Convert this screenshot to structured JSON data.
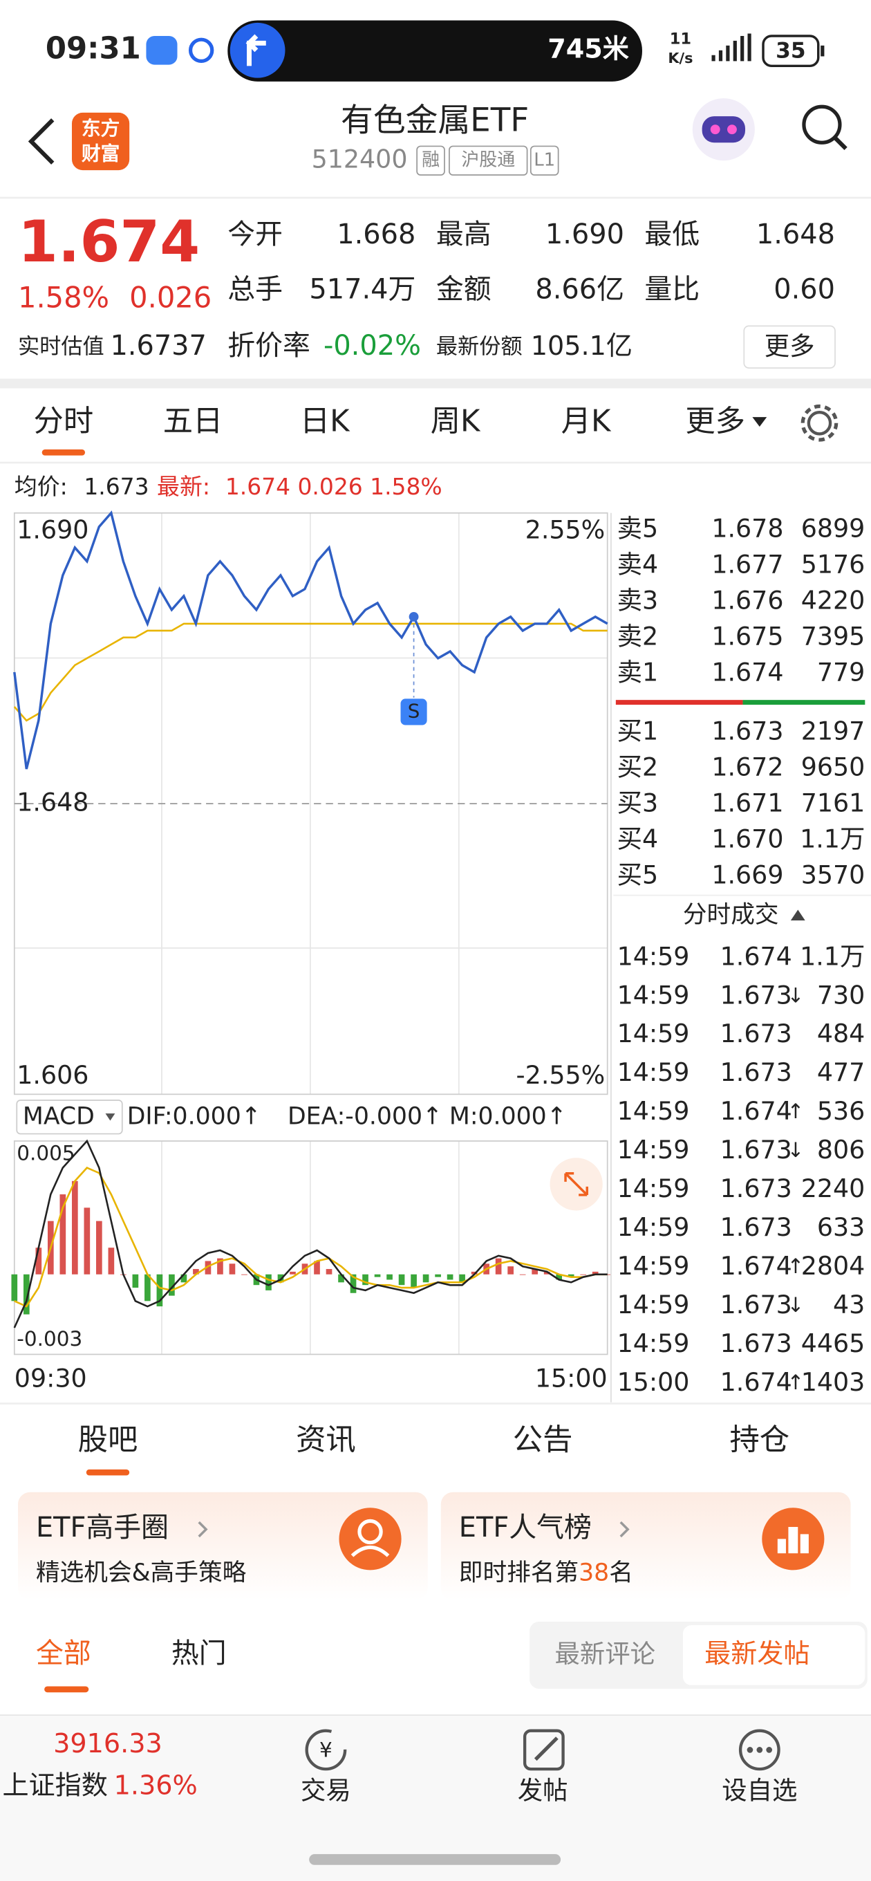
{
  "status_bar": {
    "time": "09:31",
    "navigation_distance": "745米",
    "network_speed": "11",
    "network_unit": "K/s",
    "battery": "35"
  },
  "header": {
    "logo": [
      "东方",
      "财富"
    ],
    "title": "有色金属ETF",
    "code": "512400",
    "tags": [
      "融",
      "沪股通",
      "L1"
    ]
  },
  "quote": {
    "price": "1.674",
    "change_pct": "1.58%",
    "change": "0.026",
    "stats": [
      {
        "label": "今开",
        "value": "1.668",
        "color": "#e0312b"
      },
      {
        "label": "最高",
        "value": "1.690",
        "color": "#e0312b"
      },
      {
        "label": "最低",
        "value": "1.648",
        "color": "#222"
      },
      {
        "label": "总手",
        "value": "517.4万",
        "color": "#222"
      },
      {
        "label": "金额",
        "value": "8.66亿",
        "color": "#222"
      },
      {
        "label": "量比",
        "value": "0.60",
        "color": "#222"
      }
    ],
    "estimate_label": "实时估值",
    "estimate": "1.6737",
    "discount_label": "折价率",
    "discount": "-0.02%",
    "shares_label": "最新份额",
    "shares": "105.1亿",
    "more": "更多"
  },
  "chart_tabs": {
    "items": [
      "分时",
      "五日",
      "日K",
      "周K",
      "月K",
      "更多"
    ],
    "active": 0
  },
  "intraday_chart": {
    "type": "line",
    "avg_label": "均价:",
    "avg": "1.673",
    "latest_label": "最新:",
    "latest": "1.674 0.026 1.58%",
    "ylim": [
      1.606,
      1.69
    ],
    "yticks": [
      {
        "value": 1.69,
        "label": "1.690"
      },
      1.648,
      1.606
    ],
    "y2lim": [
      -2.55,
      2.55
    ],
    "y2ticks": [
      {
        "value": 2.55,
        "label": "2.55%"
      },
      {
        "value": -2.55,
        "label": "-2.55%"
      }
    ],
    "price": [
      1.667,
      1.653,
      1.66,
      1.674,
      1.681,
      1.685,
      1.683,
      1.688,
      1.69,
      1.683,
      1.678,
      1.674,
      1.679,
      1.676,
      1.678,
      1.674,
      1.681,
      1.683,
      1.681,
      1.678,
      1.676,
      1.679,
      1.681,
      1.678,
      1.679,
      1.683,
      1.685,
      1.678,
      1.674,
      1.676,
      1.677,
      1.674,
      1.672,
      1.675,
      1.671,
      1.669,
      1.67,
      1.668,
      1.667,
      1.672,
      1.674,
      1.675,
      1.673,
      1.674,
      1.674,
      1.676,
      1.673,
      1.674,
      1.675,
      1.674
    ],
    "avg_price": [
      1.662,
      1.66,
      1.661,
      1.664,
      1.666,
      1.668,
      1.669,
      1.67,
      1.671,
      1.672,
      1.672,
      1.673,
      1.673,
      1.673,
      1.674,
      1.674,
      1.674,
      1.674,
      1.674,
      1.674,
      1.674,
      1.674,
      1.674,
      1.674,
      1.674,
      1.674,
      1.674,
      1.674,
      1.674,
      1.674,
      1.674,
      1.674,
      1.674,
      1.674,
      1.674,
      1.674,
      1.674,
      1.674,
      1.674,
      1.674,
      1.674,
      1.674,
      1.674,
      1.674,
      1.674,
      1.674,
      1.674,
      1.673,
      1.673,
      1.673
    ],
    "price_color": "#2f5fc4",
    "avg_color": "#e8b400",
    "signal": "S",
    "xticks": [
      "09:30",
      "15:00"
    ]
  },
  "macd_chart": {
    "type": "bar",
    "selector": "MACD",
    "dif": "DIF:0.000↑",
    "dea": "DEA:-0.000↑",
    "m": "M:0.000↑",
    "ylim": [
      -0.003,
      0.005
    ],
    "yticks": [
      0.005,
      -0.003
    ],
    "histogram": [
      -0.001,
      -0.0015,
      0.001,
      0.002,
      0.003,
      0.0035,
      0.0025,
      0.002,
      0.001,
      0,
      -0.0005,
      -0.001,
      -0.0012,
      -0.0008,
      -0.0003,
      0.0002,
      0.0005,
      0.0006,
      0.0004,
      0,
      -0.0004,
      -0.0006,
      -0.0003,
      0.0001,
      0.0004,
      0.0005,
      0.0002,
      -0.0003,
      -0.0007,
      -0.0004,
      -0.0001,
      -0.0002,
      -0.0004,
      -0.0005,
      -0.0003,
      -0.0001,
      -0.0002,
      -0.0003,
      0.0001,
      0.0004,
      0.0006,
      0.0003,
      0,
      0.0002,
      0.0001,
      -0.0002,
      -0.0001,
      0,
      0.0001,
      0
    ],
    "dif_values": [
      -0.002,
      -0.001,
      0.001,
      0.003,
      0.004,
      0.0045,
      0.005,
      0.004,
      0.002,
      0,
      -0.001,
      -0.0012,
      -0.001,
      -0.0005,
      0,
      0.0005,
      0.0008,
      0.0009,
      0.0007,
      0.0003,
      -0.0002,
      -0.0004,
      -0.0002,
      0.0003,
      0.0007,
      0.0009,
      0.0006,
      0,
      -0.0005,
      -0.0006,
      -0.0004,
      -0.0005,
      -0.0006,
      -0.0007,
      -0.0005,
      -0.0003,
      -0.0004,
      -0.0004,
      0,
      0.0005,
      0.0007,
      0.0006,
      0.0003,
      0.0002,
      0.0001,
      -0.0002,
      -0.0003,
      -0.0001,
      0,
      0
    ],
    "dea_values": [
      -0.001,
      -0.0012,
      -0.0005,
      0.001,
      0.0025,
      0.0035,
      0.004,
      0.0038,
      0.003,
      0.002,
      0.001,
      0,
      -0.0005,
      -0.0006,
      -0.0004,
      0,
      0.0003,
      0.0005,
      0.0006,
      0.0004,
      0,
      -0.0002,
      -0.0003,
      -0.0001,
      0.0002,
      0.0005,
      0.0006,
      0.0003,
      -0.0001,
      -0.0003,
      -0.0004,
      -0.0004,
      -0.0005,
      -0.0005,
      -0.0004,
      -0.0003,
      -0.0003,
      -0.0003,
      -0.0001,
      0.0002,
      0.0004,
      0.0005,
      0.0004,
      0.0003,
      0.0002,
      0,
      -0.0001,
      -0.0001,
      0,
      0
    ],
    "up_color": "#d9534f",
    "down_color": "#3aa63a",
    "dif_color": "#222",
    "dea_color": "#e8b400"
  },
  "order_book": {
    "asks": [
      {
        "label": "卖5",
        "price": "1.678",
        "volume": "6899"
      },
      {
        "label": "卖4",
        "price": "1.677",
        "volume": "5176"
      },
      {
        "label": "卖3",
        "price": "1.676",
        "volume": "4220"
      },
      {
        "label": "卖2",
        "price": "1.675",
        "volume": "7395"
      },
      {
        "label": "卖1",
        "price": "1.674",
        "volume": "779"
      }
    ],
    "bids": [
      {
        "label": "买1",
        "price": "1.673",
        "volume": "2197"
      },
      {
        "label": "买2",
        "price": "1.672",
        "volume": "9650"
      },
      {
        "label": "买3",
        "price": "1.671",
        "volume": "7161"
      },
      {
        "label": "买4",
        "price": "1.670",
        "volume": "1.1万"
      },
      {
        "label": "买5",
        "price": "1.669",
        "volume": "3570"
      }
    ]
  },
  "trades": {
    "title": "分时成交",
    "rows": [
      {
        "time": "14:59",
        "price": "1.674",
        "volume": "1.1万",
        "color": "#e0312b"
      },
      {
        "time": "14:59",
        "price": "1.673",
        "arrow": "↓",
        "volume": "730",
        "color": "#1a9e3a"
      },
      {
        "time": "14:59",
        "price": "1.673",
        "volume": "484",
        "color": "#1a9e3a"
      },
      {
        "time": "14:59",
        "price": "1.673",
        "volume": "477",
        "color": "#1a9e3a"
      },
      {
        "time": "14:59",
        "price": "1.674",
        "arrow": "↑",
        "volume": "536",
        "color": "#e0312b"
      },
      {
        "time": "14:59",
        "price": "1.673",
        "arrow": "↓",
        "volume": "806",
        "color": "#1a9e3a"
      },
      {
        "time": "14:59",
        "price": "1.673",
        "volume": "2240",
        "color": "#1a9e3a"
      },
      {
        "time": "14:59",
        "price": "1.673",
        "volume": "633",
        "color": "#1a9e3a"
      },
      {
        "time": "14:59",
        "price": "1.674",
        "arrow": "↑",
        "volume": "2804",
        "color": "#e0312b"
      },
      {
        "time": "14:59",
        "price": "1.673",
        "arrow": "↓",
        "volume": "43",
        "color": "#1a9e3a"
      },
      {
        "time": "14:59",
        "price": "1.673",
        "volume": "4465",
        "color": "#1a9e3a"
      },
      {
        "time": "15:00",
        "price": "1.674",
        "arrow": "↑",
        "volume": "1403",
        "color": "#e0312b"
      }
    ]
  },
  "content_tabs": {
    "items": [
      "股吧",
      "资讯",
      "公告",
      "持仓"
    ],
    "active": 0
  },
  "cards": [
    {
      "title": "ETF高手圈",
      "subtitle": [
        "精选机会&高手策略"
      ]
    },
    {
      "title": "ETF人气榜",
      "subtitle": [
        "即时排名第",
        "38",
        "名"
      ]
    }
  ],
  "filter": {
    "items": [
      "全部",
      "热门"
    ],
    "sort": [
      "最新评论",
      "最新发帖"
    ]
  },
  "bottom_bar": {
    "index_value": "3916.33",
    "index_name": "上证指数",
    "index_change": "1.36%",
    "nav": [
      "交易",
      "发帖",
      "设自选"
    ]
  }
}
